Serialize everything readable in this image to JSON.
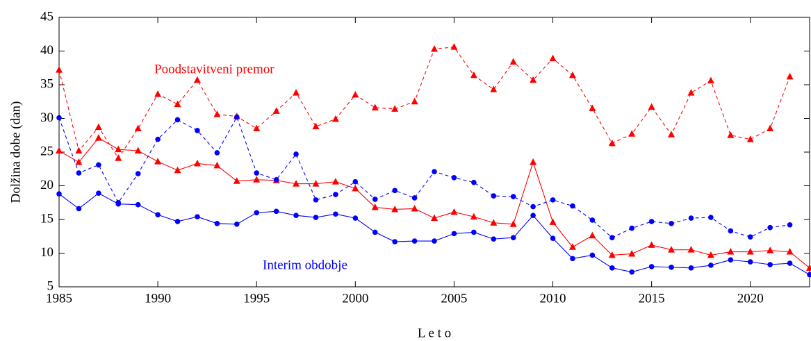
{
  "chart_data": {
    "type": "line",
    "x_label": "L e t o",
    "y_label": "Dolžina dobe (dan)",
    "annotations": [
      {
        "text": "Poodstavitveni premor",
        "color": "#ff0000"
      },
      {
        "text": "Interim obdobje",
        "color": "#0000ff"
      }
    ],
    "x": [
      1985,
      1986,
      1987,
      1988,
      1989,
      1990,
      1991,
      1992,
      1993,
      1994,
      1995,
      1996,
      1997,
      1998,
      1999,
      2000,
      2001,
      2002,
      2003,
      2004,
      2005,
      2006,
      2007,
      2008,
      2009,
      2010,
      2011,
      2012,
      2013,
      2014,
      2015,
      2016,
      2017,
      2018,
      2019,
      2020,
      2021,
      2022,
      2023
    ],
    "series": [
      {
        "color": "#ff0000",
        "dashed": true,
        "marker": "triangle",
        "values": [
          37.2,
          25.2,
          28.7,
          24.1,
          28.5,
          33.6,
          32.1,
          35.7,
          30.6,
          30.3,
          28.5,
          31.1,
          33.8,
          28.8,
          29.9,
          33.5,
          31.6,
          31.4,
          32.5,
          40.3,
          40.6,
          36.4,
          34.3,
          38.4,
          35.7,
          38.9,
          36.4,
          31.5,
          26.3,
          27.7,
          31.7,
          27.6,
          33.8,
          35.6,
          27.5,
          26.9,
          28.5,
          36.2,
          null
        ]
      },
      {
        "color": "#ff0000",
        "dashed": false,
        "marker": "triangle",
        "values": [
          25.2,
          23.5,
          27.1,
          25.4,
          25.2,
          23.6,
          22.3,
          23.3,
          23.0,
          20.7,
          20.9,
          20.8,
          20.3,
          20.3,
          20.6,
          19.6,
          16.8,
          16.5,
          16.6,
          15.2,
          16.1,
          15.4,
          14.5,
          14.3,
          23.5,
          14.6,
          10.9,
          12.6,
          9.7,
          9.9,
          11.2,
          10.5,
          10.5,
          9.7,
          10.2,
          10.2,
          10.4,
          10.2,
          7.8
        ]
      },
      {
        "color": "#0000ff",
        "dashed": true,
        "marker": "circle",
        "values": [
          30.1,
          21.9,
          23.1,
          17.5,
          21.8,
          26.9,
          29.8,
          28.2,
          24.9,
          30.2,
          21.9,
          20.9,
          24.7,
          17.9,
          18.7,
          20.6,
          18.0,
          19.3,
          18.2,
          22.1,
          21.2,
          20.5,
          18.5,
          18.4,
          16.9,
          17.9,
          17.0,
          14.9,
          12.3,
          13.7,
          14.7,
          14.4,
          15.2,
          15.3,
          13.3,
          12.4,
          13.8,
          14.2,
          null
        ]
      },
      {
        "color": "#0000ff",
        "dashed": false,
        "marker": "circle",
        "values": [
          18.8,
          16.6,
          18.9,
          17.3,
          17.2,
          15.7,
          14.7,
          15.4,
          14.4,
          14.3,
          16.0,
          16.2,
          15.6,
          15.3,
          15.8,
          15.2,
          13.1,
          11.7,
          11.8,
          11.8,
          12.9,
          13.1,
          12.1,
          12.3,
          15.6,
          12.2,
          9.2,
          9.7,
          7.8,
          7.2,
          8.0,
          7.9,
          7.8,
          8.2,
          9.0,
          8.7,
          8.3,
          8.5,
          6.8
        ]
      }
    ],
    "xlim": [
      1985,
      2023
    ],
    "xticks": [
      1985,
      1990,
      1995,
      2000,
      2005,
      2010,
      2015,
      2020
    ],
    "ylim": [
      5,
      45
    ],
    "yticks": [
      5,
      10,
      15,
      20,
      25,
      30,
      35,
      40,
      45
    ]
  }
}
